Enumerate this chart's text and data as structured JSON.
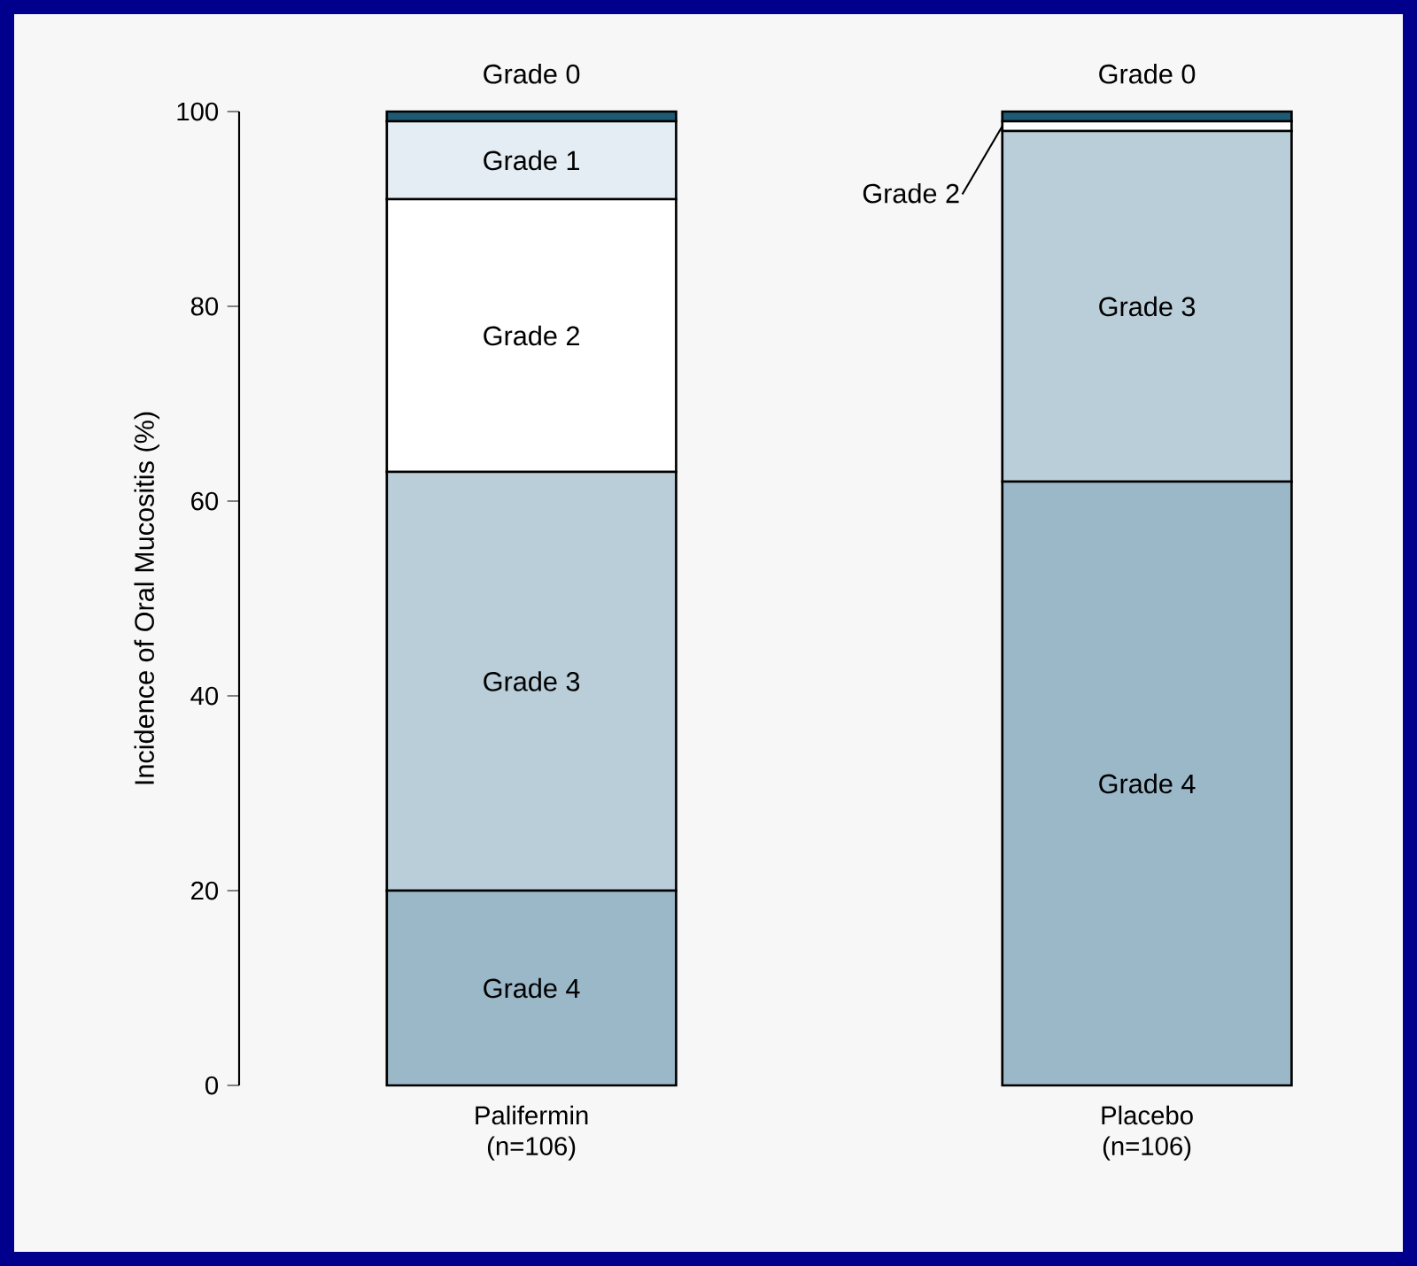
{
  "chart_data": {
    "type": "bar",
    "stacked": true,
    "ylabel": "Incidence of Oral Mucositis (%)",
    "categories": [
      "Palifermin (n=106)",
      "Placebo (n=106)"
    ],
    "ylim": [
      0,
      100
    ],
    "yticks": [
      0,
      20,
      40,
      60,
      80,
      100
    ],
    "grid": false,
    "legend": false,
    "series": [
      {
        "name": "Grade 4",
        "color": "#9bb8c9",
        "values": [
          20,
          62
        ]
      },
      {
        "name": "Grade 3",
        "color": "#b9ced9",
        "values": [
          43,
          36
        ]
      },
      {
        "name": "Grade 2",
        "color": "#ffffff",
        "values": [
          28,
          1
        ]
      },
      {
        "name": "Grade 1",
        "color": "#e4edf3",
        "values": [
          8,
          0
        ]
      },
      {
        "name": "Grade 0",
        "color": "#1f5a74",
        "values": [
          1,
          1
        ]
      }
    ]
  }
}
